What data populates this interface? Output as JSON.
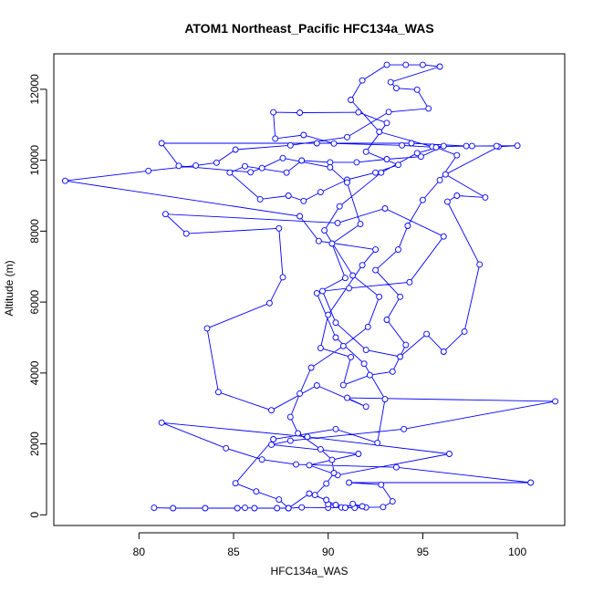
{
  "chart_data": {
    "type": "scatter",
    "title": "ATOM1 Northeast_Pacific HFC134a_WAS",
    "xlabel": "HFC134a_WAS",
    "ylabel": "Altitude (m)",
    "xlim": [
      75.5,
      102.5
    ],
    "ylim": [
      -300,
      13000
    ],
    "xticks": [
      80,
      85,
      90,
      95,
      100
    ],
    "yticks": [
      0,
      2000,
      4000,
      6000,
      8000,
      10000,
      12000
    ],
    "grid": false,
    "color": "#0000ff",
    "series": [
      {
        "style": "points-and-lines",
        "points": [
          [
            80.8,
            200
          ],
          [
            81.8,
            190
          ],
          [
            83.5,
            190
          ],
          [
            85.2,
            190
          ],
          [
            85.6,
            200
          ],
          [
            86.1,
            190
          ],
          [
            87.3,
            190
          ],
          [
            87.9,
            190
          ],
          [
            88.6,
            210
          ],
          [
            90.0,
            200
          ],
          [
            90.7,
            210
          ],
          [
            91.4,
            200
          ],
          [
            92.0,
            210
          ],
          [
            92.9,
            220
          ],
          [
            93.4,
            380
          ],
          [
            92.8,
            850
          ],
          [
            91.1,
            910
          ],
          [
            100.7,
            910
          ],
          [
            93.6,
            1340
          ],
          [
            88.3,
            1420
          ],
          [
            86.5,
            1560
          ],
          [
            84.6,
            1880
          ],
          [
            81.2,
            2600
          ],
          [
            88.9,
            2200
          ],
          [
            96.4,
            1720
          ],
          [
            90.5,
            1120
          ],
          [
            89.0,
            1400
          ],
          [
            91.6,
            1720
          ],
          [
            87.0,
            1980
          ],
          [
            88.0,
            2090
          ],
          [
            94.0,
            2420
          ],
          [
            102.0,
            3200
          ],
          [
            91.0,
            3300
          ],
          [
            92.0,
            3050
          ],
          [
            89.4,
            3650
          ],
          [
            87.0,
            2950
          ],
          [
            84.2,
            3460
          ],
          [
            83.6,
            5260
          ],
          [
            86.9,
            5970
          ],
          [
            87.6,
            6700
          ],
          [
            87.4,
            8080
          ],
          [
            82.5,
            7930
          ],
          [
            81.4,
            8480
          ],
          [
            90.5,
            8230
          ],
          [
            93.0,
            8640
          ],
          [
            96.1,
            7850
          ],
          [
            94.3,
            6560
          ],
          [
            91.1,
            6390
          ],
          [
            89.7,
            6310
          ],
          [
            90.4,
            5420
          ],
          [
            92.0,
            4650
          ],
          [
            93.8,
            4460
          ],
          [
            95.2,
            5100
          ],
          [
            96.1,
            4600
          ],
          [
            97.2,
            5170
          ],
          [
            98.0,
            7060
          ],
          [
            96.3,
            8830
          ],
          [
            96.8,
            9000
          ],
          [
            98.3,
            8950
          ],
          [
            96.2,
            9600
          ],
          [
            99.0,
            10380
          ],
          [
            100.0,
            10410
          ],
          [
            97.6,
            10400
          ],
          [
            95.5,
            10380
          ],
          [
            92.7,
            10800
          ],
          [
            91.2,
            11700
          ],
          [
            91.8,
            12250
          ],
          [
            93.1,
            12690
          ],
          [
            94.1,
            12690
          ],
          [
            95.0,
            12690
          ],
          [
            95.9,
            12640
          ],
          [
            93.3,
            12200
          ],
          [
            93.6,
            12030
          ],
          [
            94.7,
            11990
          ],
          [
            95.3,
            11460
          ],
          [
            93.2,
            11360
          ],
          [
            91.0,
            10650
          ],
          [
            88.0,
            10420
          ],
          [
            85.1,
            10300
          ],
          [
            84.1,
            9930
          ],
          [
            83.0,
            9850
          ],
          [
            80.5,
            9700
          ],
          [
            76.1,
            9420
          ],
          [
            88.5,
            8420
          ],
          [
            89.5,
            7720
          ],
          [
            92.5,
            7480
          ],
          [
            91.8,
            7040
          ],
          [
            90.0,
            5640
          ],
          [
            89.6,
            4700
          ],
          [
            91.2,
            4450
          ],
          [
            90.8,
            3660
          ],
          [
            92.2,
            3940
          ],
          [
            93.4,
            4040
          ],
          [
            94.1,
            4790
          ],
          [
            93.1,
            5500
          ],
          [
            93.8,
            6150
          ],
          [
            92.5,
            6900
          ],
          [
            93.7,
            7480
          ],
          [
            94.2,
            8150
          ],
          [
            95.0,
            8880
          ],
          [
            95.9,
            9440
          ],
          [
            96.8,
            10140
          ],
          [
            95.7,
            10360
          ],
          [
            93.9,
            10420
          ],
          [
            90.3,
            10470
          ],
          [
            88.7,
            10710
          ],
          [
            87.2,
            10610
          ],
          [
            87.1,
            11350
          ],
          [
            88.5,
            11340
          ],
          [
            91.6,
            11350
          ],
          [
            93.1,
            11050
          ],
          [
            92.0,
            10240
          ],
          [
            93.7,
            9870
          ],
          [
            92.5,
            9650
          ],
          [
            91.0,
            9450
          ],
          [
            89.6,
            9100
          ],
          [
            88.7,
            8850
          ],
          [
            87.9,
            9000
          ],
          [
            86.4,
            8900
          ],
          [
            84.8,
            9650
          ],
          [
            85.6,
            9830
          ],
          [
            87.8,
            9650
          ],
          [
            88.6,
            9990
          ],
          [
            90.1,
            9940
          ],
          [
            91.5,
            9940
          ],
          [
            93.1,
            10030
          ],
          [
            94.9,
            10100
          ],
          [
            96.1,
            10400
          ],
          [
            94.7,
            10200
          ],
          [
            92.8,
            9650
          ],
          [
            90.6,
            8700
          ],
          [
            89.8,
            8020
          ],
          [
            91.3,
            6750
          ],
          [
            92.7,
            6150
          ],
          [
            92.1,
            5300
          ],
          [
            90.8,
            4760
          ],
          [
            89.1,
            4150
          ],
          [
            88.5,
            3420
          ],
          [
            88.0,
            2760
          ],
          [
            88.4,
            2300
          ],
          [
            89.6,
            1850
          ],
          [
            90.2,
            1550
          ],
          [
            90.3,
            1180
          ],
          [
            89.9,
            880
          ],
          [
            89.3,
            560
          ],
          [
            90.4,
            280
          ],
          [
            91.8,
            240
          ],
          [
            91.3,
            310
          ],
          [
            90.9,
            200
          ],
          [
            90.0,
            300
          ],
          [
            89.9,
            420
          ],
          [
            89.0,
            600
          ],
          [
            87.9,
            190
          ],
          [
            87.4,
            430
          ],
          [
            86.2,
            660
          ],
          [
            85.1,
            890
          ],
          [
            87.1,
            2130
          ],
          [
            90.4,
            2420
          ],
          [
            92.6,
            2030
          ],
          [
            93.0,
            3260
          ],
          [
            91.9,
            4260
          ],
          [
            90.4,
            5000
          ],
          [
            89.4,
            6250
          ],
          [
            90.9,
            6680
          ],
          [
            90.2,
            7650
          ],
          [
            91.7,
            8200
          ],
          [
            91.0,
            9370
          ],
          [
            90.1,
            9800
          ],
          [
            87.6,
            10060
          ],
          [
            86.5,
            9780
          ],
          [
            85.9,
            9660
          ],
          [
            82.1,
            9840
          ],
          [
            81.2,
            10480
          ],
          [
            89.4,
            10480
          ],
          [
            94.4,
            10480
          ],
          [
            97.3,
            10400
          ],
          [
            98.9,
            10400
          ]
        ]
      }
    ]
  }
}
